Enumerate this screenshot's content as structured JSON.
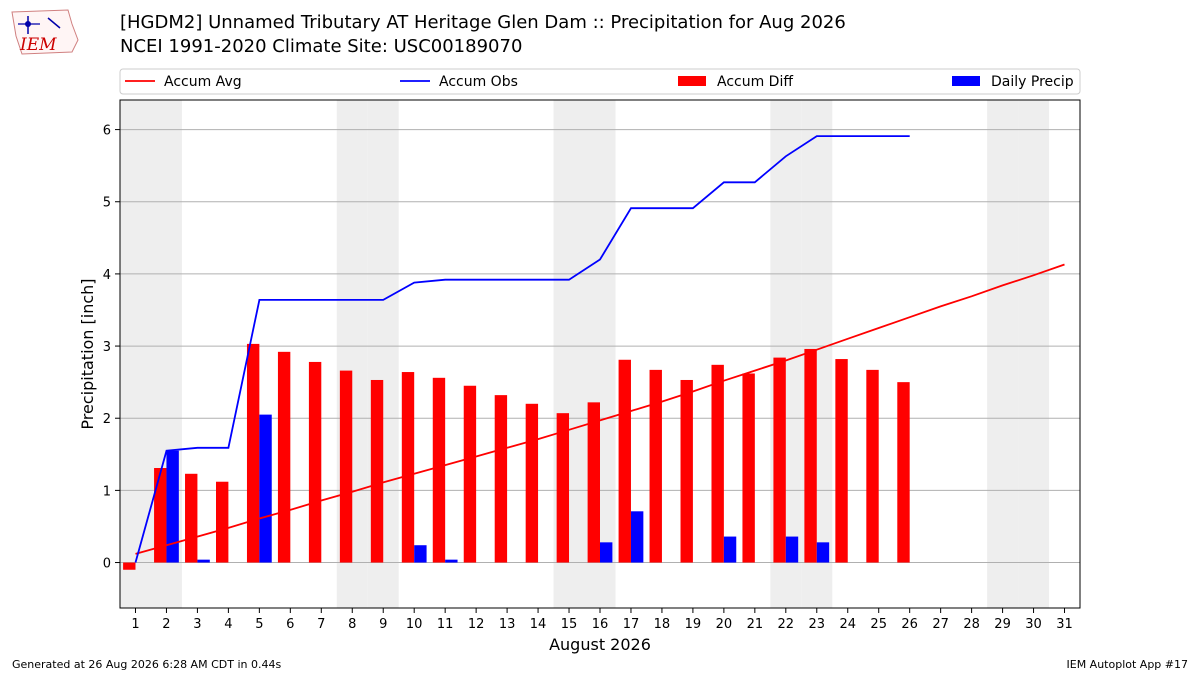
{
  "header": {
    "logo_text": "IEM",
    "title_line1": "[HGDM2] Unnamed Tributary  AT Heritage Glen Dam :: Precipitation for Aug 2026",
    "title_line2": "NCEI 1991-2020 Climate Site: USC00189070"
  },
  "footer": {
    "generated": "Generated at 26 Aug 2026 6:28 AM CDT in 0.44s",
    "app": "IEM Autoplot App #17"
  },
  "colors": {
    "accum_avg": "#ff0000",
    "accum_obs": "#0000ff",
    "accum_diff": "#ff0000",
    "daily_precip": "#0000ff",
    "weekend_shade": "#eeeeee",
    "grid": "#b0b0b0"
  },
  "chart_data": {
    "type": "bar",
    "xlabel": "August 2026",
    "ylabel": "Precipitation [inch]",
    "xlim": [
      0.5,
      31.5
    ],
    "ylim": [
      -0.63,
      6.41
    ],
    "yticks": [
      0,
      1,
      2,
      3,
      4,
      5,
      6
    ],
    "grid": "horizontal",
    "legend_placement": "top",
    "days": [
      1,
      2,
      3,
      4,
      5,
      6,
      7,
      8,
      9,
      10,
      11,
      12,
      13,
      14,
      15,
      16,
      17,
      18,
      19,
      20,
      21,
      22,
      23,
      24,
      25,
      26,
      27,
      28,
      29,
      30,
      31
    ],
    "shaded_days": [
      1,
      2,
      8,
      9,
      15,
      16,
      22,
      23,
      29,
      30
    ],
    "series": [
      {
        "name": "Accum Avg",
        "kind": "line",
        "x": [
          1,
          2,
          3,
          4,
          5,
          6,
          7,
          8,
          9,
          10,
          11,
          12,
          13,
          14,
          15,
          16,
          17,
          18,
          19,
          20,
          21,
          22,
          23,
          24,
          25,
          26,
          27,
          28,
          29,
          30,
          31
        ],
        "values": [
          0.12,
          0.24,
          0.36,
          0.48,
          0.61,
          0.73,
          0.86,
          0.98,
          1.11,
          1.23,
          1.35,
          1.47,
          1.59,
          1.71,
          1.84,
          1.97,
          2.1,
          2.23,
          2.37,
          2.52,
          2.66,
          2.8,
          2.95,
          3.1,
          3.25,
          3.4,
          3.55,
          3.69,
          3.84,
          3.98,
          4.13
        ]
      },
      {
        "name": "Accum Obs",
        "kind": "line",
        "x": [
          1,
          2,
          3,
          4,
          5,
          6,
          7,
          8,
          9,
          10,
          11,
          12,
          13,
          14,
          15,
          16,
          17,
          18,
          19,
          20,
          21,
          22,
          23,
          24,
          25,
          26
        ],
        "values": [
          0,
          1.55,
          1.59,
          1.59,
          3.64,
          3.64,
          3.64,
          3.64,
          3.64,
          3.88,
          3.92,
          3.92,
          3.92,
          3.92,
          3.92,
          4.2,
          4.91,
          4.91,
          4.91,
          5.27,
          5.27,
          5.63,
          5.91,
          5.91,
          5.91,
          5.91
        ]
      },
      {
        "name": "Accum Diff",
        "kind": "bar",
        "x": [
          1,
          2,
          3,
          4,
          5,
          6,
          7,
          8,
          9,
          10,
          11,
          12,
          13,
          14,
          15,
          16,
          17,
          18,
          19,
          20,
          21,
          22,
          23,
          24,
          25,
          26
        ],
        "values": [
          -0.1,
          1.31,
          1.23,
          1.12,
          3.03,
          2.92,
          2.78,
          2.66,
          2.53,
          2.64,
          2.56,
          2.45,
          2.32,
          2.2,
          2.07,
          2.22,
          2.81,
          2.67,
          2.53,
          2.74,
          2.62,
          2.84,
          2.96,
          2.82,
          2.67,
          2.5
        ]
      },
      {
        "name": "Daily Precip",
        "kind": "bar",
        "x": [
          1,
          2,
          3,
          4,
          5,
          6,
          7,
          8,
          9,
          10,
          11,
          12,
          13,
          14,
          15,
          16,
          17,
          18,
          19,
          20,
          21,
          22,
          23,
          24,
          25,
          26
        ],
        "values": [
          0,
          1.55,
          0.04,
          0,
          2.05,
          0,
          0,
          0,
          0,
          0.24,
          0.04,
          0,
          0,
          0,
          0,
          0.28,
          0.71,
          0,
          0,
          0.36,
          0,
          0.36,
          0.28,
          0,
          0,
          0
        ]
      }
    ]
  }
}
